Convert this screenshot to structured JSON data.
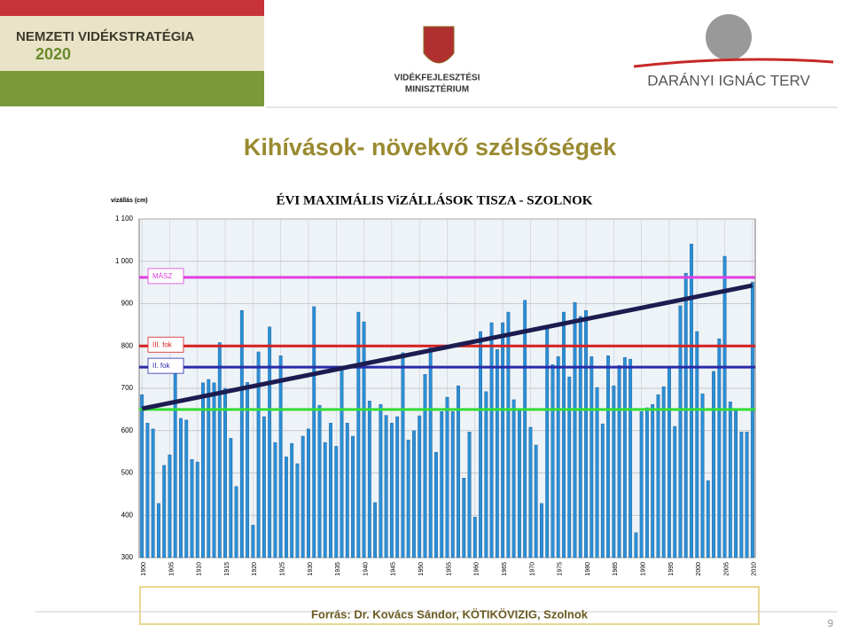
{
  "header": {
    "left_title": "NEMZETI VIDÉKSTRATÉGIA",
    "left_year": "2020",
    "ministry_line1": "VIDÉKFEJLESZTÉSI",
    "ministry_line2": "MINISZTÉRIUM",
    "right_title": "DARÁNYI IGNÁC TERV"
  },
  "slide_title": "Kihívások- növekvő szélsőségek",
  "chart_data": {
    "type": "bar",
    "title": "ÉVI  MAXIMÁLIS ViZÁLLÁSOK    TISZA - SZOLNOK",
    "y_label": "vízállás (cm)",
    "x": [
      1900,
      1901,
      1902,
      1903,
      1904,
      1905,
      1906,
      1907,
      1908,
      1909,
      1910,
      1911,
      1912,
      1913,
      1914,
      1915,
      1916,
      1917,
      1918,
      1919,
      1920,
      1921,
      1922,
      1923,
      1924,
      1925,
      1926,
      1927,
      1928,
      1929,
      1930,
      1931,
      1932,
      1933,
      1934,
      1935,
      1936,
      1937,
      1938,
      1939,
      1940,
      1941,
      1942,
      1943,
      1944,
      1945,
      1946,
      1947,
      1948,
      1949,
      1950,
      1951,
      1952,
      1953,
      1954,
      1955,
      1956,
      1957,
      1958,
      1959,
      1960,
      1961,
      1962,
      1963,
      1964,
      1965,
      1966,
      1967,
      1968,
      1969,
      1970,
      1971,
      1972,
      1973,
      1974,
      1975,
      1976,
      1977,
      1978,
      1979,
      1980,
      1981,
      1982,
      1983,
      1984,
      1985,
      1986,
      1987,
      1988,
      1989,
      1990,
      1991,
      1992,
      1993,
      1994,
      1995,
      1996,
      1997,
      1998,
      1999,
      2000,
      2001,
      2002,
      2003,
      2004,
      2005,
      2006,
      2007,
      2008,
      2009,
      2010
    ],
    "values": [
      685,
      618,
      604,
      428,
      518,
      543,
      745,
      629,
      625,
      532,
      526,
      713,
      721,
      713,
      808,
      700,
      582,
      468,
      884,
      714,
      377,
      786,
      633,
      845,
      572,
      777,
      538,
      570,
      522,
      587,
      604,
      893,
      660,
      572,
      618,
      563,
      746,
      618,
      587,
      880,
      857,
      670,
      430,
      662,
      636,
      618,
      633,
      784,
      578,
      600,
      635,
      733,
      796,
      549,
      645,
      679,
      645,
      706,
      488,
      597,
      396,
      834,
      692,
      855,
      792,
      855,
      880,
      673,
      652,
      908,
      608,
      566,
      428,
      842,
      756,
      775,
      880,
      727,
      903,
      870,
      884,
      775,
      702,
      616,
      777,
      706,
      754,
      773,
      769,
      359,
      645,
      654,
      662,
      685,
      704,
      750,
      610,
      895,
      972,
      1041,
      834,
      687,
      482,
      740,
      817,
      1012,
      668,
      652,
      597,
      597,
      951
    ],
    "color": "#2b8fd6",
    "xlim": [
      1899.5,
      2010.5
    ],
    "xticks": [
      1900,
      1905,
      1910,
      1915,
      1920,
      1925,
      1930,
      1935,
      1940,
      1945,
      1950,
      1955,
      1960,
      1965,
      1970,
      1975,
      1980,
      1985,
      1990,
      1995,
      2000,
      2005,
      2010
    ],
    "ylim": [
      300,
      1100
    ],
    "yticks": [
      300,
      400,
      500,
      600,
      700,
      800,
      900,
      {
        "value": 1000,
        "label": "1 000"
      },
      {
        "value": 1100,
        "label": "1 100"
      }
    ],
    "grid": true,
    "reference_lines": [
      {
        "label": "MÁSZ",
        "value": 962,
        "color": "#e040e0"
      },
      {
        "label": "III. fok",
        "value": 800,
        "color": "#d42020"
      },
      {
        "label": "II. fok",
        "value": 750,
        "color": "#2a2aa8"
      },
      {
        "value": 650,
        "color": "#33dd33"
      }
    ],
    "trend_line": {
      "x": [
        1900,
        2010
      ],
      "values": [
        652,
        943
      ],
      "color": "#1c1c50"
    }
  },
  "footer": {
    "source": "Forrás: Dr. Kovács Sándor, KÖTIKÖVIZIG, Szolnok",
    "page": "9"
  }
}
